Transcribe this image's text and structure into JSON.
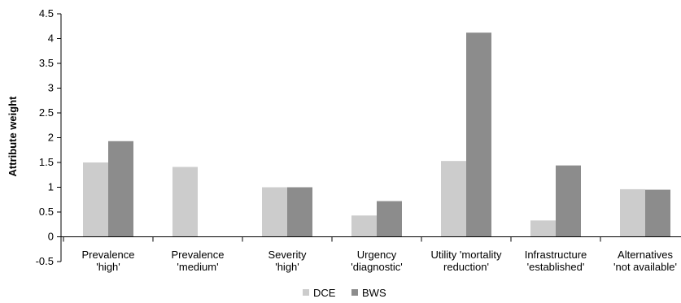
{
  "chart_data": {
    "type": "bar",
    "ylabel": "Attribute weight",
    "ylim": [
      -0.5,
      4.5
    ],
    "yticks": [
      "4.5",
      "4",
      "3.5",
      "3",
      "2.5",
      "2",
      "1.5",
      "1",
      "0.5",
      "0",
      "-0.5"
    ],
    "categories": [
      [
        "Prevalence",
        "'high'"
      ],
      [
        "Prevalence",
        "'medium'"
      ],
      [
        "Severity",
        "'high'"
      ],
      [
        "Urgency",
        "'diagnostic'"
      ],
      [
        "Utility 'mortality",
        "reduction'"
      ],
      [
        "Infrastructure",
        "'established'"
      ],
      [
        "Alternatives",
        "'not available'"
      ]
    ],
    "series": [
      {
        "name": "DCE",
        "color": "#cccccc",
        "values": [
          1.5,
          1.41,
          1.0,
          0.43,
          1.53,
          0.33,
          0.96
        ]
      },
      {
        "name": "BWS",
        "color": "#8c8c8c",
        "values": [
          1.93,
          null,
          1.0,
          0.72,
          4.12,
          1.44,
          0.95
        ]
      }
    ],
    "legend": "bottom-center",
    "grid": false
  }
}
